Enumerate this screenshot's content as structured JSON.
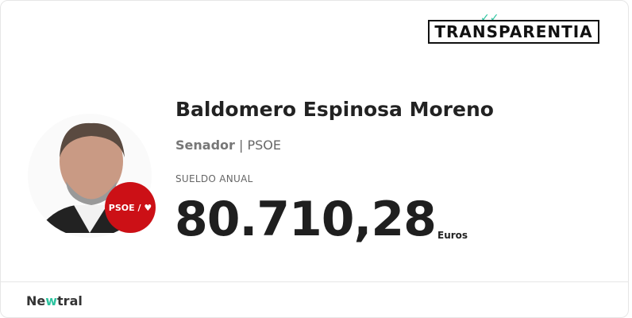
{
  "brand": {
    "transparentia": "TRANSPARENTIA",
    "neutral_prefix": "Ne",
    "neutral_mark": "w",
    "neutral_suffix": "tral",
    "accent": "#2ec4a0"
  },
  "profile": {
    "name": "Baldomero Espinosa Moreno",
    "role": "Senador",
    "separator": "|",
    "party": "PSOE",
    "party_badge": "PSOE / ♥",
    "party_color": "#cc1016"
  },
  "salary": {
    "label": "SUELDO ANUAL",
    "amount": "80.710,28",
    "currency": "Euros"
  }
}
